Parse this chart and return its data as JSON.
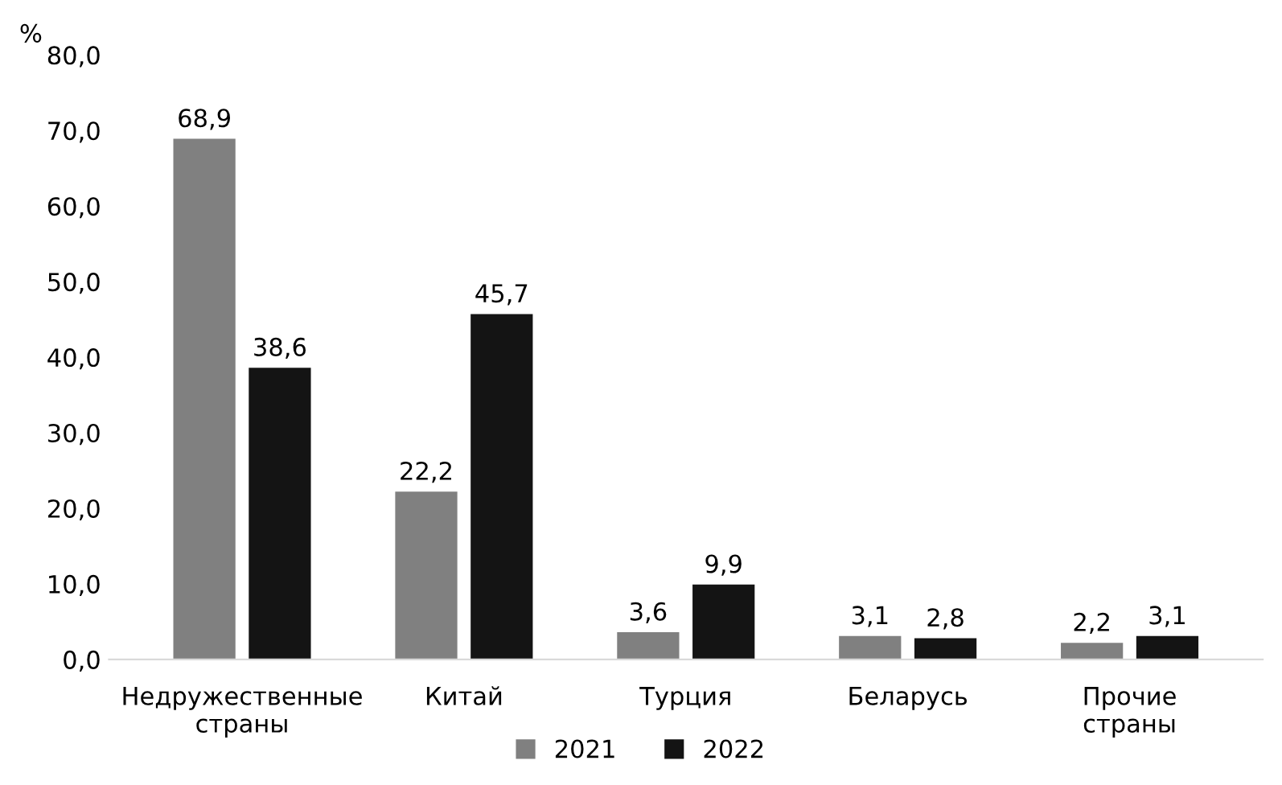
{
  "chart_data": {
    "type": "bar",
    "ylabel": "%",
    "categories": [
      "Недружественные\nстраны",
      "Китай",
      "Турция",
      "Беларусь",
      "Прочие\nстраны"
    ],
    "series": [
      {
        "name": "2021",
        "color": "#808080",
        "values": [
          68.9,
          22.2,
          3.6,
          3.1,
          2.2
        ],
        "value_labels": [
          "68,9",
          "22,2",
          "3,6",
          "3,1",
          "2,2"
        ]
      },
      {
        "name": "2022",
        "color": "#141414",
        "values": [
          38.6,
          45.7,
          9.9,
          2.8,
          3.1
        ],
        "value_labels": [
          "38,6",
          "45,7",
          "9,9",
          "2,8",
          "3,1"
        ]
      }
    ],
    "ylim": [
      0,
      80
    ],
    "yticks": [
      {
        "value": 0,
        "label": "0,0"
      },
      {
        "value": 10,
        "label": "10,0"
      },
      {
        "value": 20,
        "label": "20,0"
      },
      {
        "value": 30,
        "label": "30,0"
      },
      {
        "value": 40,
        "label": "40,0"
      },
      {
        "value": 50,
        "label": "50,0"
      },
      {
        "value": 60,
        "label": "60,0"
      },
      {
        "value": 70,
        "label": "70,0"
      },
      {
        "value": 80,
        "label": "80,0"
      }
    ],
    "grid": false,
    "legend": "bottom"
  }
}
